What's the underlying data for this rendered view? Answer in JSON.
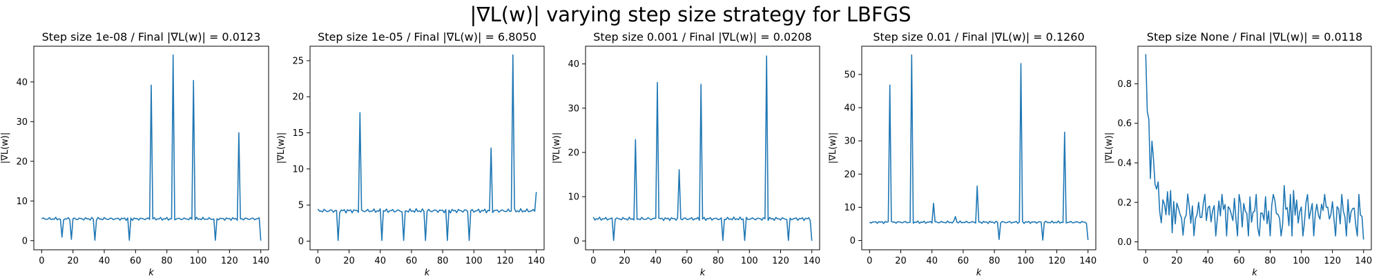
{
  "figure": {
    "title": "|∇L(w)| varying step size strategy for LBFGS",
    "series_color": "#1f77b4"
  },
  "chart_data": [
    {
      "type": "line",
      "title": "Step size 1e-08 / Final |∇L(w)| = 0.0123",
      "xlabel": "k",
      "ylabel": "|∇L(w)|",
      "xlim": [
        -5,
        145
      ],
      "ylim": [
        -2.3,
        49
      ],
      "xticks": [
        0,
        20,
        40,
        60,
        80,
        100,
        120,
        140
      ],
      "yticks": [
        0,
        10,
        20,
        30,
        40
      ],
      "base": 5.5,
      "base_amp": 0.4,
      "events": [
        [
          13,
          0.9
        ],
        [
          19,
          0.3
        ],
        [
          34,
          0.1
        ],
        [
          56,
          0.1
        ],
        [
          70,
          39.2
        ],
        [
          84,
          46.8
        ],
        [
          97,
          40.4
        ],
        [
          111,
          0.1
        ],
        [
          126,
          27.2
        ],
        [
          140,
          0.01
        ]
      ],
      "series": [
        {
          "name": "|∇L(w)|",
          "length": 141
        }
      ]
    },
    {
      "type": "line",
      "title": "Step size 1e-05 / Final |∇L(w)| = 6.8050",
      "xlabel": "k",
      "ylabel": "|∇L(w)|",
      "xlim": [
        -5,
        145
      ],
      "ylim": [
        -1.2,
        27
      ],
      "xticks": [
        0,
        20,
        40,
        60,
        80,
        100,
        120,
        140
      ],
      "yticks": [
        0,
        5,
        10,
        15,
        20,
        25
      ],
      "base": 4.2,
      "base_amp": 0.3,
      "events": [
        [
          13,
          0.1
        ],
        [
          27,
          17.8
        ],
        [
          41,
          0.1
        ],
        [
          55,
          0.1
        ],
        [
          69,
          0.1
        ],
        [
          83,
          0.1
        ],
        [
          97,
          0.1
        ],
        [
          111,
          12.9
        ],
        [
          125,
          25.8
        ],
        [
          140,
          6.8
        ]
      ],
      "series": [
        {
          "name": "|∇L(w)|",
          "length": 141
        }
      ]
    },
    {
      "type": "line",
      "title": "Step size 0.001 / Final |∇L(w)| = 0.0208",
      "xlabel": "k",
      "ylabel": "|∇L(w)|",
      "xlim": [
        -5,
        145
      ],
      "ylim": [
        -2,
        44
      ],
      "xticks": [
        0,
        20,
        40,
        60,
        80,
        100,
        120,
        140
      ],
      "yticks": [
        0,
        10,
        20,
        30,
        40
      ],
      "base": 5.0,
      "base_amp": 0.4,
      "events": [
        [
          13,
          0.1
        ],
        [
          27,
          22.9
        ],
        [
          41,
          35.8
        ],
        [
          55,
          16.1
        ],
        [
          69,
          35.4
        ],
        [
          83,
          0.1
        ],
        [
          97,
          0.1
        ],
        [
          111,
          41.8
        ],
        [
          125,
          0.1
        ],
        [
          140,
          0.02
        ]
      ],
      "series": [
        {
          "name": "|∇L(w)|",
          "length": 141
        }
      ]
    },
    {
      "type": "line",
      "title": "Step size 0.01 / Final |∇L(w)| = 0.1260",
      "xlabel": "k",
      "ylabel": "|∇L(w)|",
      "xlim": [
        -5,
        145
      ],
      "ylim": [
        -2.8,
        58.5
      ],
      "xticks": [
        0,
        20,
        40,
        60,
        80,
        100,
        120,
        140
      ],
      "yticks": [
        0,
        10,
        20,
        30,
        40,
        50
      ],
      "base": 5.5,
      "base_amp": 0.4,
      "events": [
        [
          13,
          46.8
        ],
        [
          27,
          55.9
        ],
        [
          41,
          11.2
        ],
        [
          55,
          7.2
        ],
        [
          69,
          16.4
        ],
        [
          83,
          0.3
        ],
        [
          97,
          53.3
        ],
        [
          111,
          0.1
        ],
        [
          125,
          32.6
        ],
        [
          140,
          0.126
        ]
      ],
      "series": [
        {
          "name": "|∇L(w)|",
          "length": 141
        }
      ]
    },
    {
      "type": "line",
      "title": "Step size None / Final |∇L(w)| = 0.0118",
      "xlabel": "k",
      "ylabel": "|∇L(w)|",
      "xlim": [
        -5,
        145
      ],
      "ylim": [
        -0.04,
        0.99
      ],
      "xticks": [
        0,
        20,
        40,
        60,
        80,
        100,
        120,
        140
      ],
      "yticks": [
        0.0,
        0.2,
        0.4,
        0.6,
        0.8
      ],
      "ytick_decimals": 1,
      "decay": true,
      "series": [
        {
          "name": "|∇L(w)|",
          "length": 141
        }
      ]
    }
  ]
}
